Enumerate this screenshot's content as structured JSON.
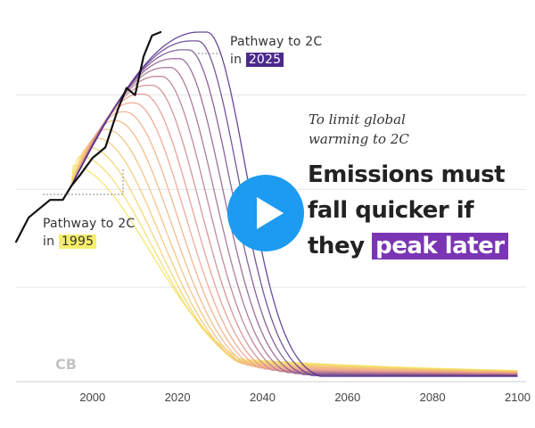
{
  "chart_data": {
    "type": "line",
    "title": "Emissions must fall quicker if they peak later",
    "subtitle": "To limit global warming to 2C",
    "xlabel": "",
    "ylabel": "",
    "xlim": [
      1982,
      2102
    ],
    "xticks": [
      2000,
      2020,
      2040,
      2060,
      2080,
      2100
    ],
    "grid": true,
    "historical": {
      "name": "",
      "color": "#111111",
      "x": [
        1982,
        1985,
        1990,
        1993,
        1995,
        1997,
        2000,
        2003,
        2006,
        2008,
        2010,
        2012,
        2014,
        2016
      ],
      "y": [
        0.4,
        0.47,
        0.52,
        0.52,
        0.56,
        0.59,
        0.64,
        0.67,
        0.78,
        0.84,
        0.82,
        0.93,
        0.99,
        1.0
      ]
    },
    "pathways": {
      "peak_years": [
        1995,
        1997,
        1999,
        2001,
        2003,
        2005,
        2007,
        2009,
        2011,
        2013,
        2015,
        2017,
        2019,
        2021,
        2023,
        2025
      ],
      "color_earliest": "#f5e35a",
      "color_latest": "#4a2a8a"
    },
    "annotations": {
      "pathway_2025_line1": "Pathway to 2C",
      "pathway_2025_prefix": "in",
      "pathway_2025_year": "2025",
      "pathway_1995_line1": "Pathway to 2C",
      "pathway_1995_prefix": "in",
      "pathway_1995_year": "1995",
      "note_line1": "To limit global",
      "note_line2": "warming to 2C",
      "headline_line1": "Emissions must",
      "headline_line2": "fall quicker if",
      "headline_line3_a": "they",
      "headline_line3_b": "peak later"
    },
    "source_logo": "CB"
  },
  "video": {
    "play_icon": "play-icon",
    "play_color": "#1d9bf0"
  }
}
